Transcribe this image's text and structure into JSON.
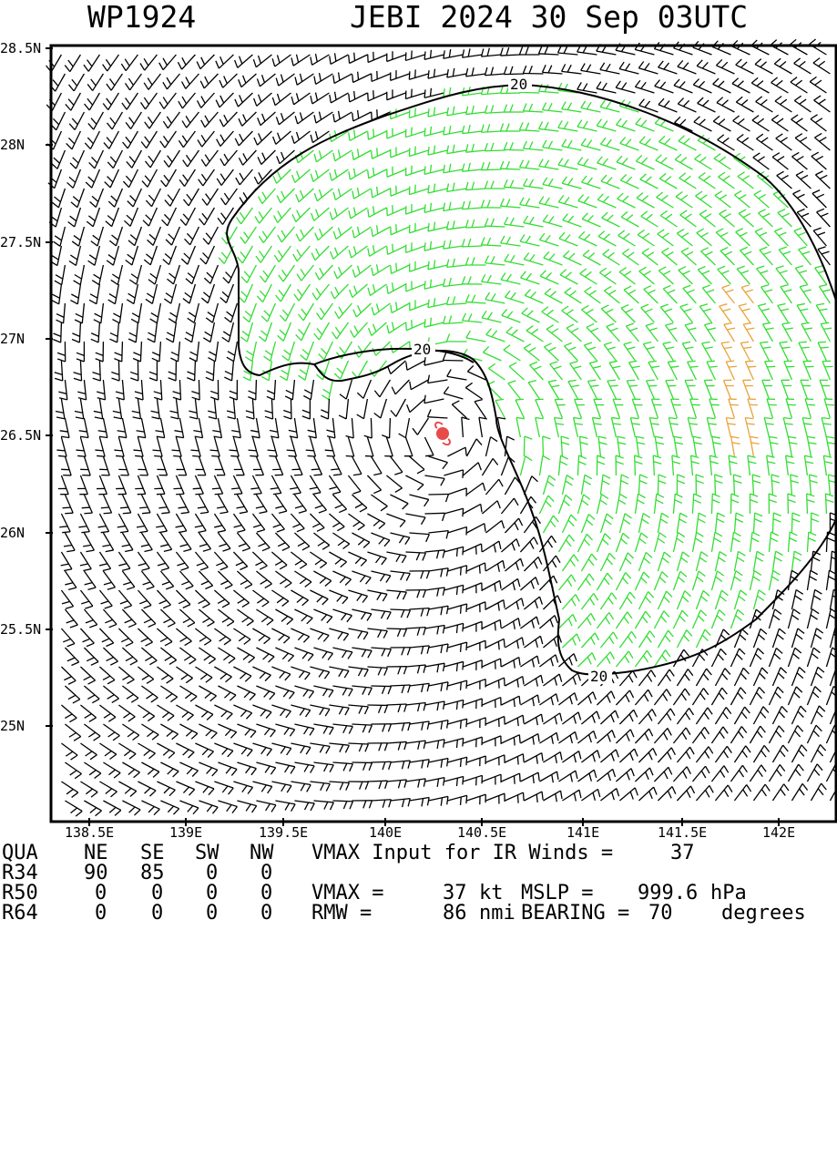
{
  "title": {
    "storm_id": "WP1924",
    "storm_info": "JEBI 2024 30 Sep 03UTC"
  },
  "axes": {
    "lat_labels": [
      "28.5N",
      "28N",
      "27.5N",
      "27N",
      "26.5N",
      "26N",
      "25.5N",
      "25N"
    ],
    "lon_labels": [
      "138.5E",
      "139E",
      "139.5E",
      "140E",
      "140.5E",
      "141E",
      "141.5E",
      "142E"
    ]
  },
  "map": {
    "center": {
      "lat": 26.53,
      "lon": 140.28
    },
    "contour_label": "20",
    "colors": {
      "calm_barb": "#000000",
      "r34_barb": "#33dd33",
      "r50_barb": "#e8a33a",
      "r64_barb": "#999999",
      "storm_symbol": "#e84a4a",
      "contour": "#000000"
    }
  },
  "table": {
    "header": {
      "qua": "QUA",
      "ne": "NE",
      "se": "SE",
      "sw": "SW",
      "nw": "NW",
      "vmax_input_text": "VMAX Input for IR Winds =",
      "vmax_input_value": "37"
    },
    "r34": {
      "label": "R34",
      "ne": "90",
      "se": "85",
      "sw": "0",
      "nw": "0"
    },
    "r50": {
      "label": "R50",
      "ne": "0",
      "se": "0",
      "sw": "0",
      "nw": "0",
      "vmax_text": "VMAX =",
      "vmax_value": "37",
      "vmax_unit": "kt",
      "mslp_text": "MSLP =",
      "mslp_value": "999.6",
      "mslp_unit": "hPa"
    },
    "r64": {
      "label": "R64",
      "ne": "0",
      "se": "0",
      "sw": "0",
      "nw": "0",
      "rmw_text": "RMW =",
      "rmw_value": "86",
      "rmw_unit": "nmi",
      "bearing_text": "BEARING =",
      "bearing_value": "70",
      "bearing_unit": "degrees"
    }
  }
}
